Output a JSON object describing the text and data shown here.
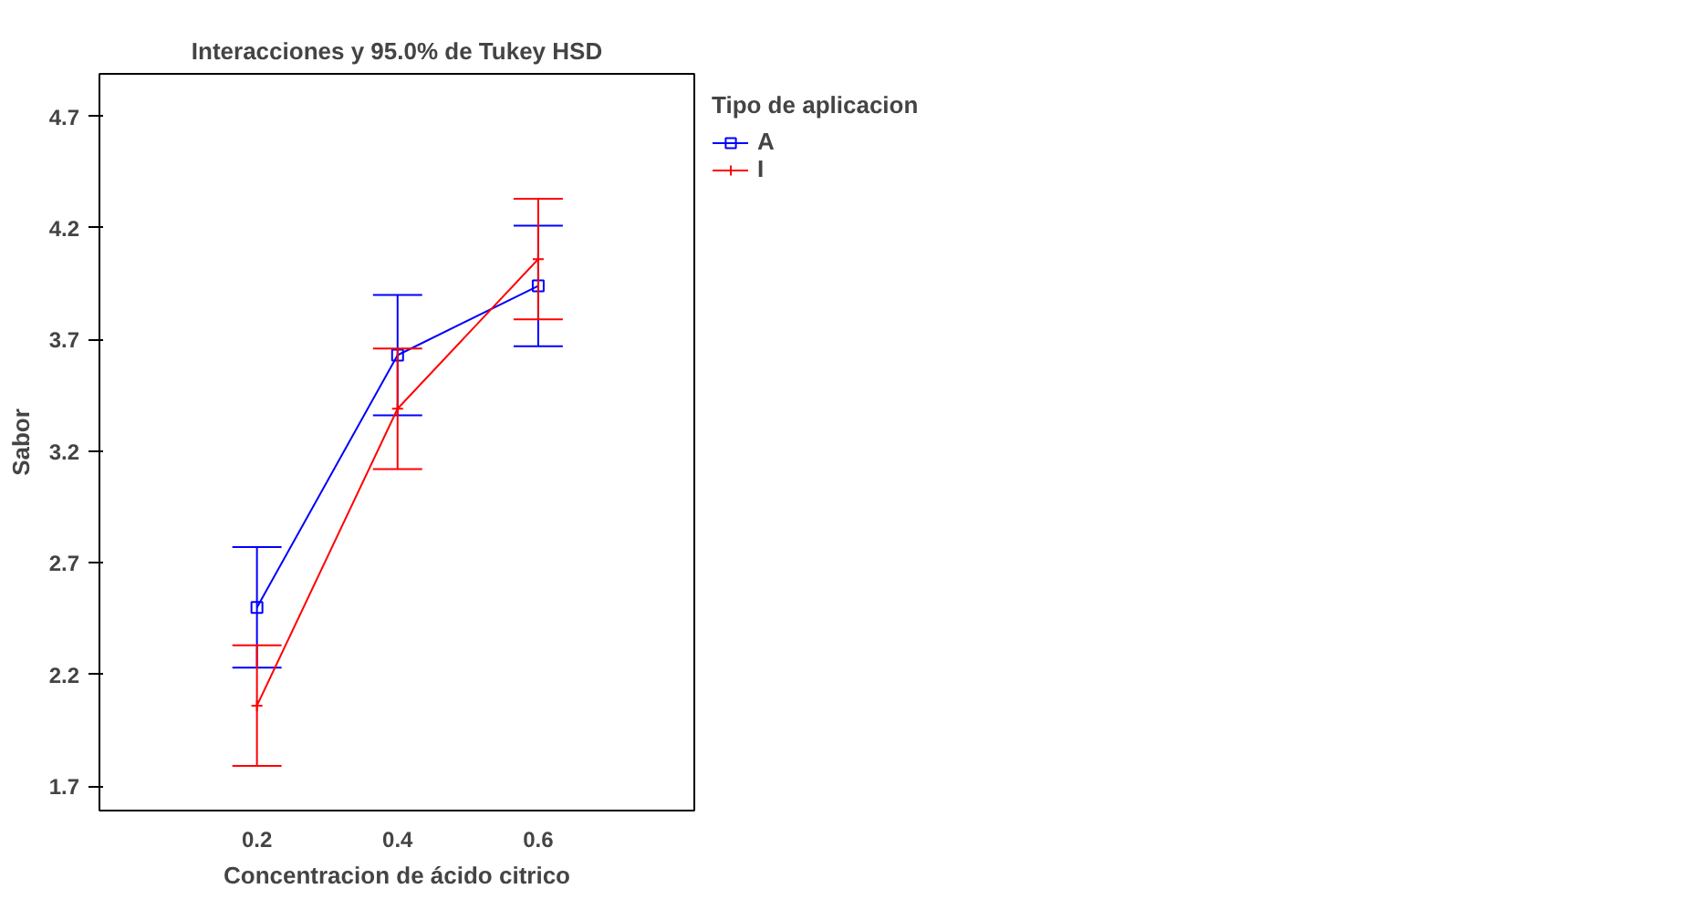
{
  "chart_data": {
    "type": "line",
    "title": "Interacciones y 95.0% de Tukey HSD",
    "xlabel": "Concentracion de ácido citrico",
    "ylabel": "Sabor",
    "legend_title": "Tipo de aplicacion",
    "x": [
      0.2,
      0.4,
      0.6
    ],
    "series": [
      {
        "name": "A",
        "color": "#0000ff",
        "marker": "square",
        "values": [
          2.5,
          3.63,
          3.94
        ],
        "errors": [
          0.27,
          0.27,
          0.27
        ]
      },
      {
        "name": "I",
        "color": "#ff0000",
        "marker": "cross",
        "values": [
          2.06,
          3.39,
          4.06
        ],
        "errors": [
          0.27,
          0.27,
          0.27
        ]
      }
    ],
    "xlim": [
      -0.024,
      0.822
    ],
    "ylim": [
      1.59,
      4.89
    ],
    "xticks": [
      0.2,
      0.4,
      0.6
    ],
    "yticks": [
      1.7,
      2.2,
      2.7,
      3.2,
      3.7,
      4.2,
      4.7
    ],
    "grid": false,
    "legend": "top right"
  }
}
